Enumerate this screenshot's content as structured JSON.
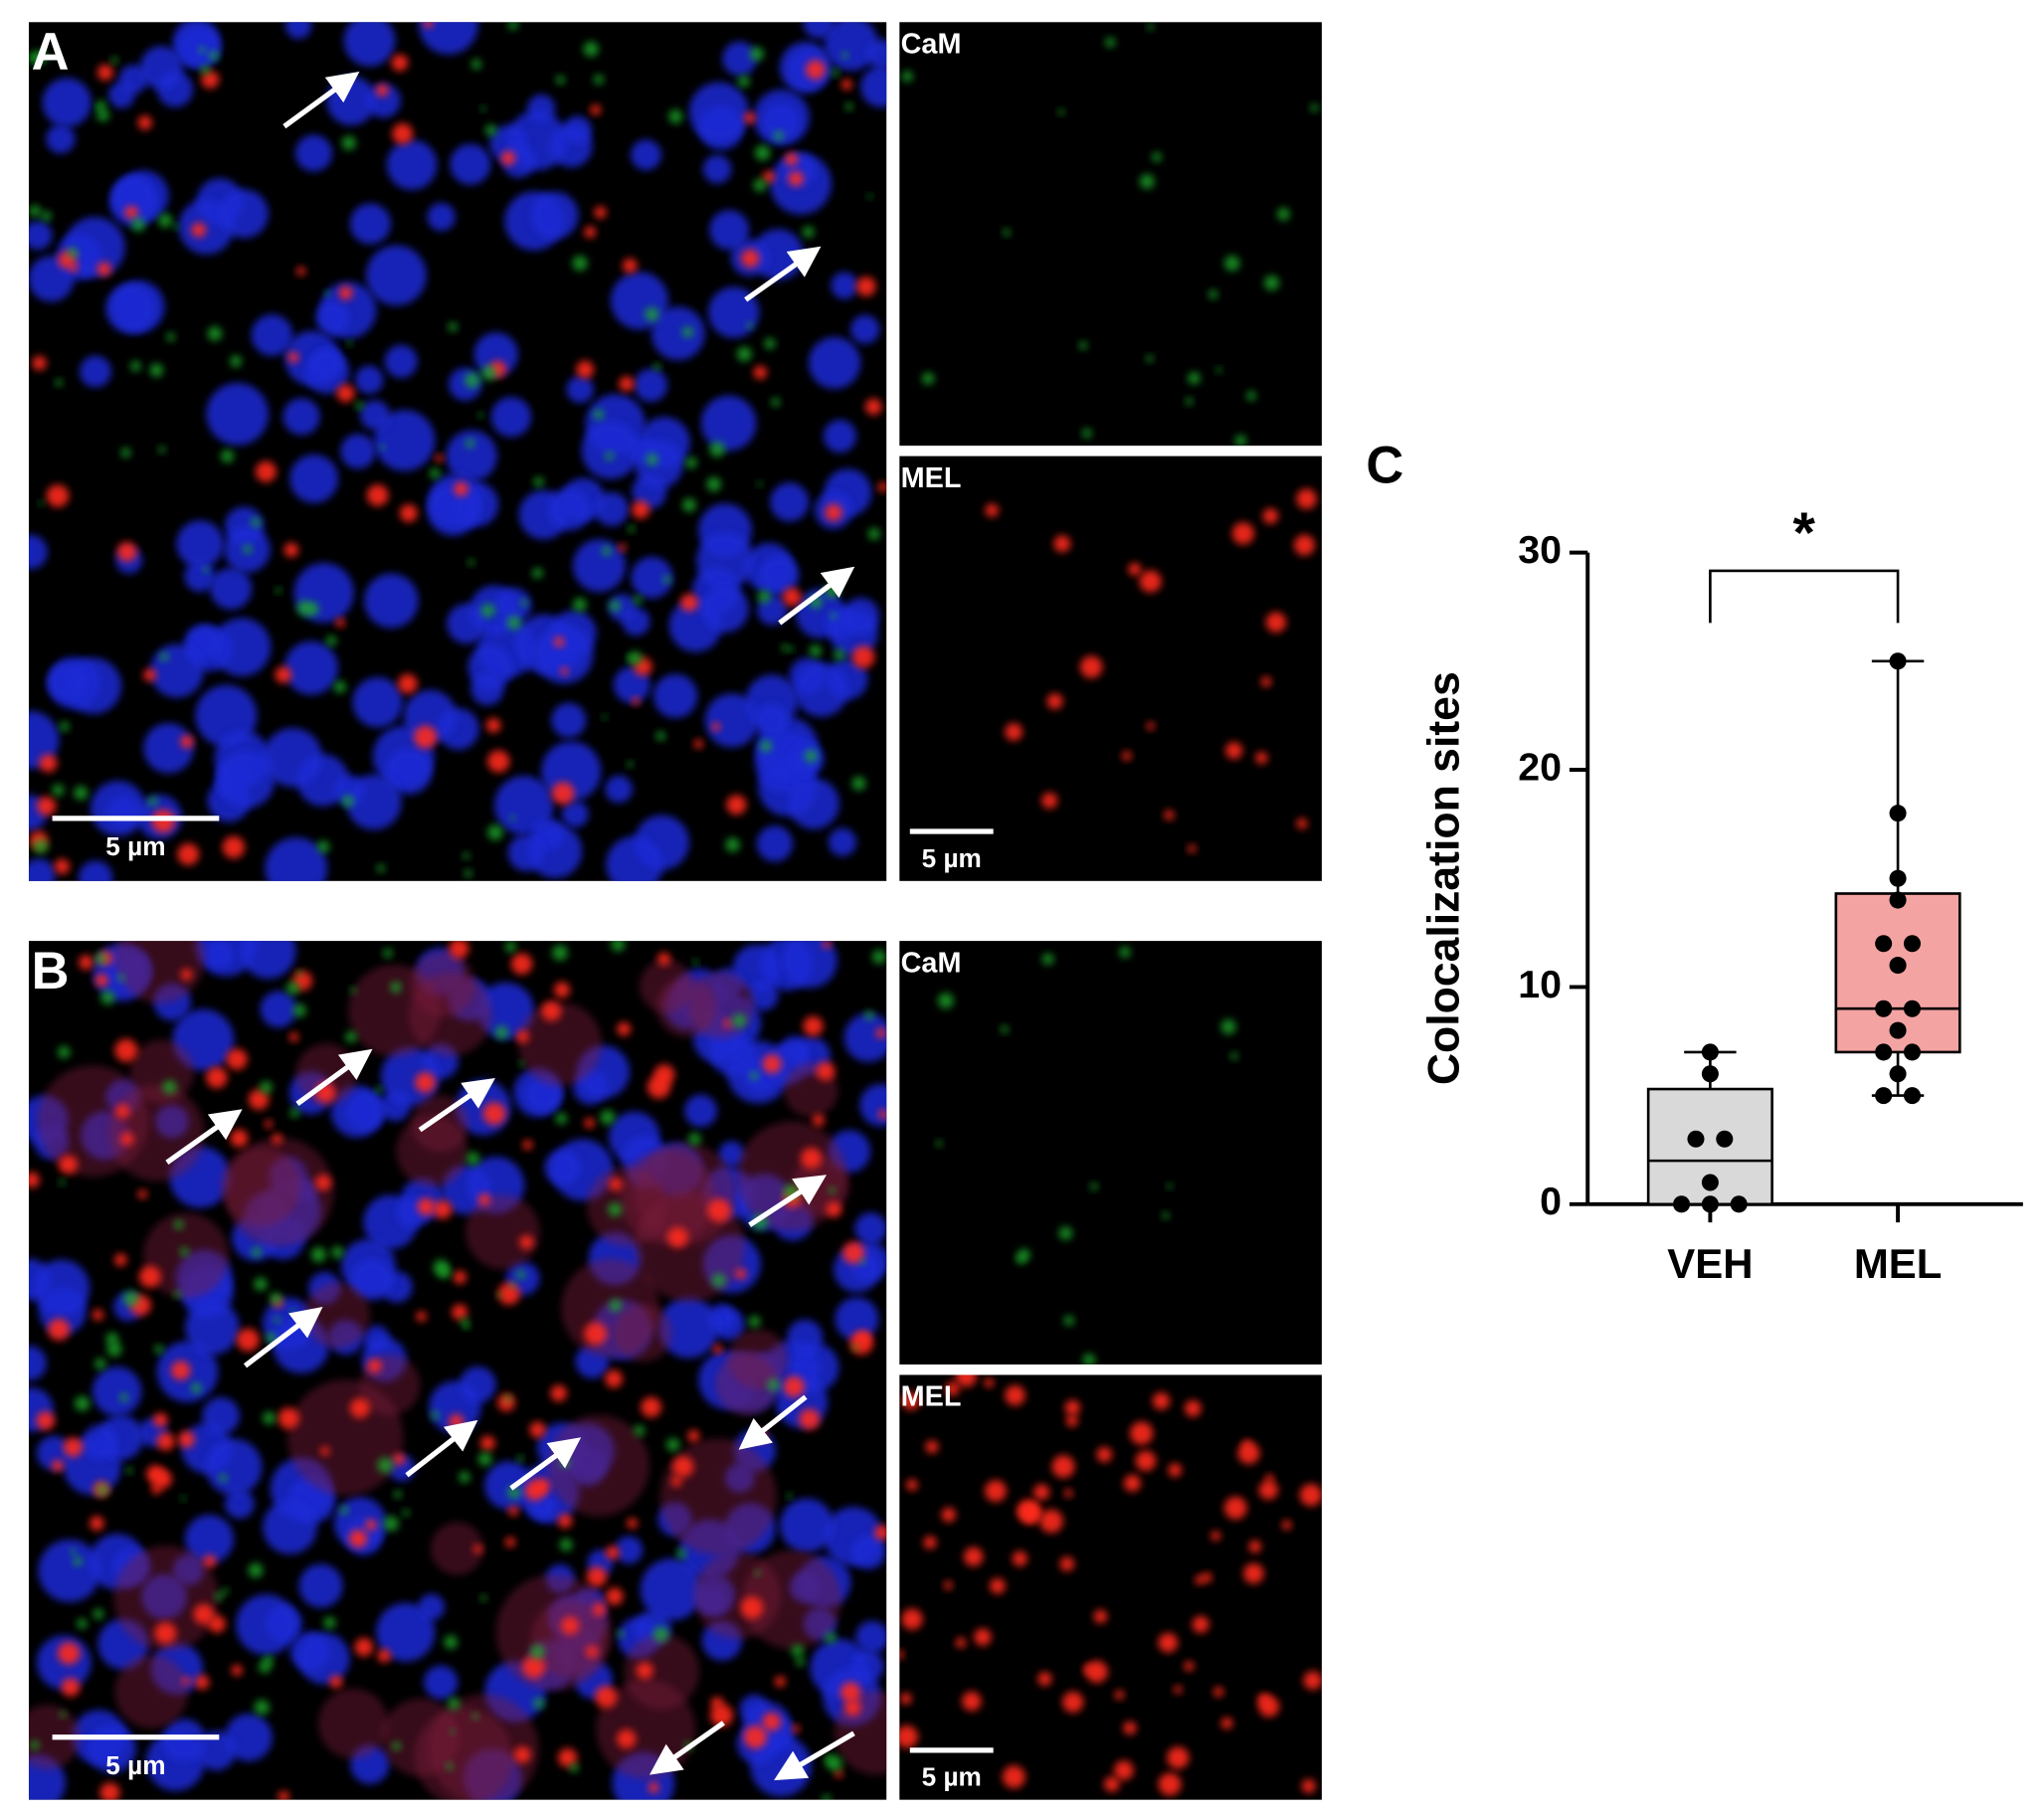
{
  "panels": [
    {
      "label": "A",
      "scale_bar": "5 µm",
      "cam": "CaM",
      "mel": "MEL",
      "mel_scale_bar": "5 µm"
    },
    {
      "label": "B",
      "scale_bar": "5 µm",
      "cam": "CaM",
      "mel": "MEL",
      "mel_scale_bar": "5 µm"
    }
  ],
  "chart_data": {
    "type": "box",
    "panel_label": "C",
    "ylabel": "Colocalization sites",
    "categories": [
      "VEH",
      "MEL"
    ],
    "ylim": [
      0,
      30
    ],
    "yticks": [
      0,
      10,
      20,
      30
    ],
    "significance": "*",
    "boxes": [
      {
        "color": "#d9d9d9",
        "points": [
          7,
          6,
          3,
          3,
          1,
          0,
          0,
          0
        ],
        "q1": 0,
        "median": 2,
        "q3": 5.3,
        "whisker_low": 0,
        "whisker_high": 7
      },
      {
        "color": "#f4a3a3",
        "points": [
          25,
          18,
          15,
          14,
          12,
          12,
          11,
          9,
          9,
          8,
          7,
          7,
          6,
          5,
          5
        ],
        "q1": 7,
        "median": 9,
        "q3": 14.3,
        "whisker_low": 5,
        "whisker_high": 25
      }
    ]
  }
}
